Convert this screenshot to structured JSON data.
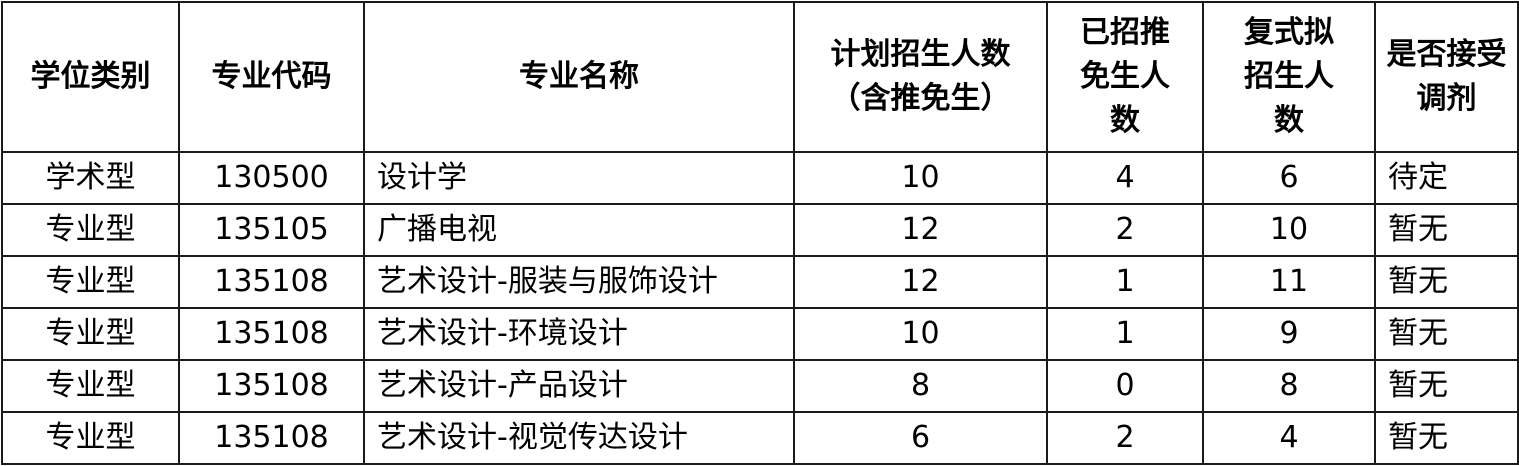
{
  "table": {
    "headers": [
      "学位类别",
      "专业代码",
      "专业名称",
      "计划招生人数（含推免生）",
      "已招推免生人数",
      "复式拟招生人数",
      "是否接受调剂"
    ],
    "rows": [
      [
        "学术型",
        "130500",
        "设计学",
        "10",
        "4",
        "6",
        "待定"
      ],
      [
        "专业型",
        "135105",
        "广播电视",
        "12",
        "2",
        "10",
        "暂无"
      ],
      [
        "专业型",
        "135108",
        "艺术设计-服装与服饰设计",
        "12",
        "1",
        "11",
        "暂无"
      ],
      [
        "专业型",
        "135108",
        "艺术设计-环境设计",
        "10",
        "1",
        "9",
        "暂无"
      ],
      [
        "专业型",
        "135108",
        "艺术设计-产品设计",
        "8",
        "0",
        "8",
        "暂无"
      ],
      [
        "专业型",
        "135108",
        "艺术设计-视觉传达设计",
        "6",
        "2",
        "4",
        "暂无"
      ]
    ]
  }
}
